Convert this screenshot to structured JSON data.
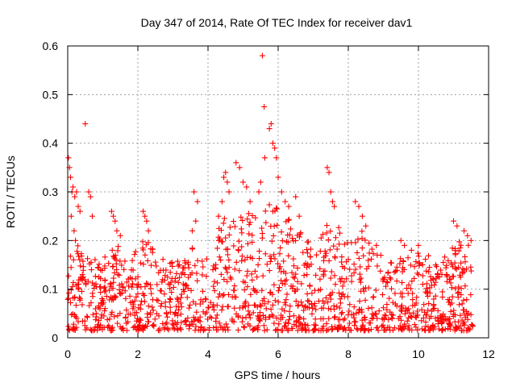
{
  "chart_data": {
    "type": "scatter",
    "title": "Day 347 of 2014, Rate Of TEC Index for receiver dav1",
    "xlabel": "GPS time / hours",
    "ylabel": "ROTI / TECUs",
    "xlim": [
      0,
      12
    ],
    "ylim": [
      0,
      0.6
    ],
    "xticks": [
      "0",
      "2",
      "4",
      "6",
      "8",
      "10",
      "12"
    ],
    "yticks": [
      "0",
      "0.1",
      "0.2",
      "0.3",
      "0.4",
      "0.5",
      "0.6"
    ],
    "grid": true,
    "marker": "+",
    "color": "#ff0000",
    "series": [
      {
        "name": "ROTI",
        "points": [
          [
            0.02,
            0.37
          ],
          [
            0.05,
            0.35
          ],
          [
            0.08,
            0.33
          ],
          [
            0.12,
            0.3
          ],
          [
            0.15,
            0.31
          ],
          [
            0.2,
            0.29
          ],
          [
            0.25,
            0.3
          ],
          [
            0.3,
            0.27
          ],
          [
            0.35,
            0.26
          ],
          [
            0.1,
            0.25
          ],
          [
            0.18,
            0.22
          ],
          [
            0.22,
            0.2
          ],
          [
            0.5,
            0.44
          ],
          [
            0.6,
            0.3
          ],
          [
            0.65,
            0.29
          ],
          [
            0.7,
            0.25
          ],
          [
            1.25,
            0.26
          ],
          [
            1.3,
            0.25
          ],
          [
            1.35,
            0.24
          ],
          [
            1.4,
            0.22
          ],
          [
            1.5,
            0.21
          ],
          [
            2.15,
            0.26
          ],
          [
            2.2,
            0.25
          ],
          [
            2.25,
            0.24
          ],
          [
            2.3,
            0.22
          ],
          [
            3.6,
            0.3
          ],
          [
            3.7,
            0.28
          ],
          [
            3.65,
            0.24
          ],
          [
            3.55,
            0.22
          ],
          [
            4.3,
            0.25
          ],
          [
            4.4,
            0.28
          ],
          [
            4.45,
            0.33
          ],
          [
            4.5,
            0.34
          ],
          [
            4.55,
            0.32
          ],
          [
            4.6,
            0.3
          ],
          [
            4.8,
            0.36
          ],
          [
            4.9,
            0.35
          ],
          [
            5.0,
            0.32
          ],
          [
            5.1,
            0.31
          ],
          [
            5.2,
            0.28
          ],
          [
            5.45,
            0.3
          ],
          [
            5.5,
            0.32
          ],
          [
            5.55,
            0.58
          ],
          [
            5.6,
            0.475
          ],
          [
            5.62,
            0.37
          ],
          [
            5.75,
            0.43
          ],
          [
            5.8,
            0.44
          ],
          [
            5.85,
            0.4
          ],
          [
            5.9,
            0.39
          ],
          [
            5.95,
            0.37
          ],
          [
            6.0,
            0.33
          ],
          [
            6.1,
            0.3
          ],
          [
            6.2,
            0.28
          ],
          [
            6.3,
            0.27
          ],
          [
            6.5,
            0.29
          ],
          [
            6.6,
            0.25
          ],
          [
            7.4,
            0.35
          ],
          [
            7.45,
            0.34
          ],
          [
            7.5,
            0.3
          ],
          [
            7.55,
            0.28
          ],
          [
            7.6,
            0.27
          ],
          [
            8.2,
            0.28
          ],
          [
            8.3,
            0.27
          ],
          [
            8.4,
            0.25
          ],
          [
            8.5,
            0.23
          ],
          [
            9.5,
            0.2
          ],
          [
            9.6,
            0.19
          ],
          [
            9.8,
            0.18
          ],
          [
            10.0,
            0.19
          ],
          [
            11.0,
            0.24
          ],
          [
            11.1,
            0.23
          ],
          [
            11.3,
            0.22
          ],
          [
            11.4,
            0.21
          ],
          [
            11.5,
            0.2
          ]
        ]
      }
    ]
  }
}
